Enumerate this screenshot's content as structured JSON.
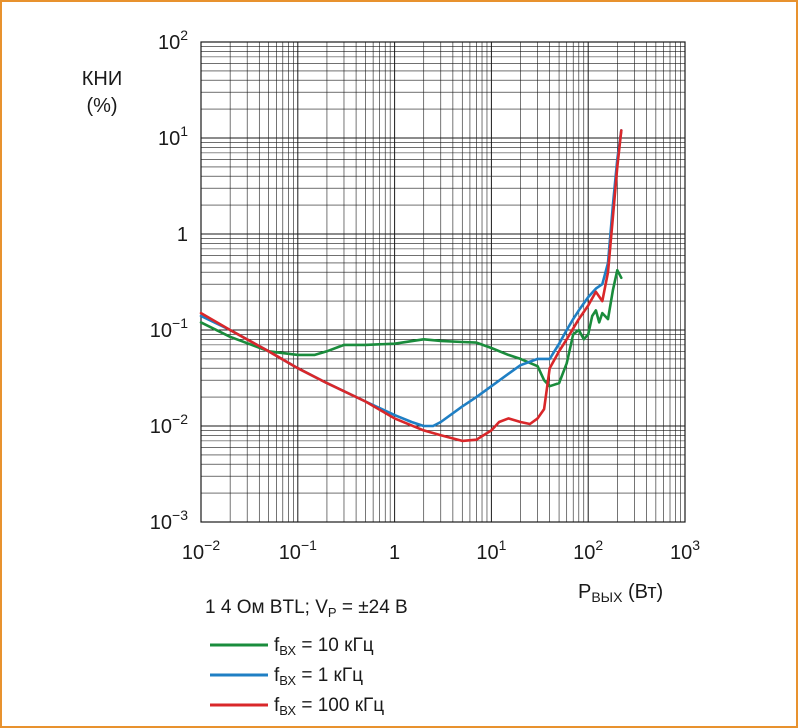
{
  "chart_data": {
    "type": "line",
    "ylabel_line1": "КНИ",
    "ylabel_line2": "(%)",
    "xlabel_main": "P",
    "xlabel_sub": "ВЫХ",
    "xlabel_unit": " (Вт)",
    "x_scale": "log",
    "y_scale": "log",
    "xlim": [
      0.01,
      1000
    ],
    "ylim": [
      0.001,
      100
    ],
    "grid": true,
    "x_ticks": [
      {
        "base": "10",
        "exp": "−2"
      },
      {
        "base": "10",
        "exp": "−1"
      },
      {
        "base": "1",
        "exp": ""
      },
      {
        "base": "10",
        "exp": "1"
      },
      {
        "base": "10",
        "exp": "2"
      },
      {
        "base": "10",
        "exp": "3"
      }
    ],
    "y_ticks": [
      {
        "base": "10",
        "exp": "−3"
      },
      {
        "base": "10",
        "exp": "−2"
      },
      {
        "base": "10",
        "exp": "−1"
      },
      {
        "base": "1",
        "exp": ""
      },
      {
        "base": "10",
        "exp": "1"
      },
      {
        "base": "10",
        "exp": "2"
      }
    ],
    "condition": {
      "prefix": "1  4 Ом BTL; V",
      "sub": "P",
      "suffix": " = ±24 В"
    },
    "series": [
      {
        "legend_main": "f",
        "legend_sub": "ВХ",
        "legend_rest": " = 10 кГц",
        "color": "#1a8c3c",
        "x": [
          0.01,
          0.02,
          0.05,
          0.1,
          0.15,
          0.2,
          0.3,
          0.5,
          1,
          2,
          3,
          5,
          7,
          10,
          15,
          20,
          30,
          35,
          40,
          50,
          60,
          70,
          80,
          90,
          100,
          110,
          120,
          130,
          140,
          160,
          180,
          200,
          220
        ],
        "y": [
          0.12,
          0.085,
          0.06,
          0.055,
          0.055,
          0.06,
          0.07,
          0.07,
          0.072,
          0.08,
          0.077,
          0.075,
          0.074,
          0.065,
          0.055,
          0.05,
          0.042,
          0.03,
          0.026,
          0.028,
          0.045,
          0.09,
          0.1,
          0.08,
          0.09,
          0.14,
          0.16,
          0.12,
          0.15,
          0.13,
          0.26,
          0.42,
          0.35
        ]
      },
      {
        "legend_main": "f",
        "legend_sub": "ВХ",
        "legend_rest": " = 1 кГц",
        "color": "#1f7fc4",
        "x": [
          0.01,
          0.02,
          0.05,
          0.1,
          0.2,
          0.5,
          1,
          1.5,
          2,
          2.5,
          3,
          5,
          7,
          10,
          15,
          20,
          30,
          40,
          50,
          60,
          70,
          80,
          100,
          120,
          140,
          160,
          180,
          200,
          220
        ],
        "y": [
          0.14,
          0.1,
          0.06,
          0.04,
          0.028,
          0.018,
          0.013,
          0.011,
          0.01,
          0.01,
          0.011,
          0.016,
          0.02,
          0.026,
          0.035,
          0.043,
          0.05,
          0.05,
          0.072,
          0.1,
          0.13,
          0.16,
          0.22,
          0.27,
          0.3,
          0.5,
          2,
          6,
          12
        ]
      },
      {
        "legend_main": "f",
        "legend_sub": "ВХ",
        "legend_rest": " = 100 кГц",
        "color": "#d9272a",
        "x": [
          0.01,
          0.02,
          0.05,
          0.1,
          0.2,
          0.5,
          1,
          2,
          3,
          5,
          7,
          10,
          12,
          15,
          20,
          25,
          30,
          35,
          40,
          50,
          60,
          80,
          100,
          120,
          140,
          160,
          180,
          200,
          220
        ],
        "y": [
          0.15,
          0.1,
          0.06,
          0.04,
          0.028,
          0.018,
          0.012,
          0.009,
          0.008,
          0.007,
          0.0072,
          0.009,
          0.011,
          0.012,
          0.011,
          0.0105,
          0.012,
          0.015,
          0.04,
          0.06,
          0.08,
          0.13,
          0.18,
          0.25,
          0.2,
          0.4,
          1.5,
          5,
          12
        ]
      }
    ]
  }
}
